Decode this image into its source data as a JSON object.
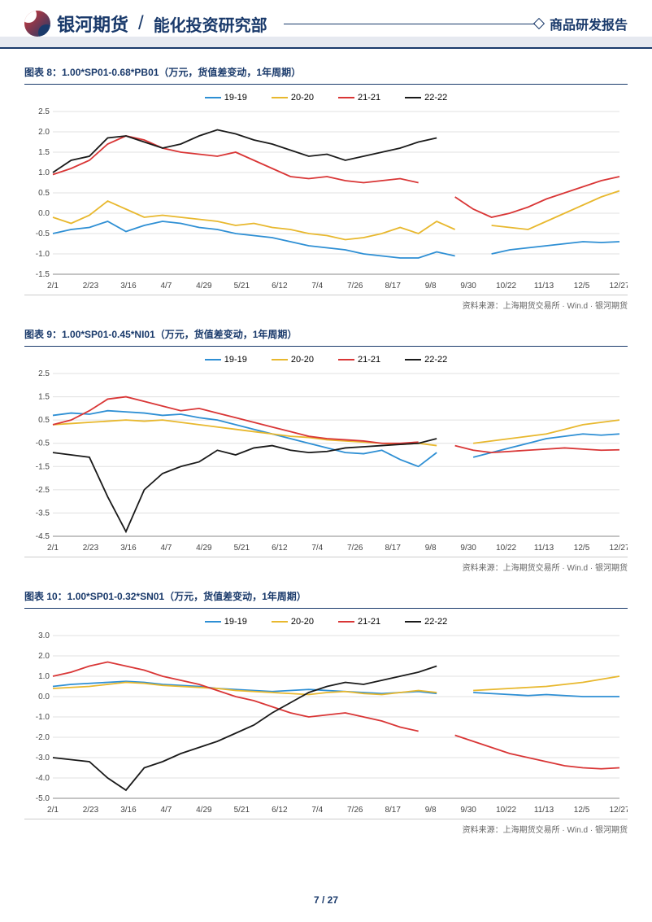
{
  "header": {
    "brand": "银河期货",
    "dept": "能化投资研究部",
    "report_type": "商品研发报告"
  },
  "footer": {
    "page": "7",
    "total": "27"
  },
  "colors": {
    "s1": "#2e8fd4",
    "s2": "#e8b82e",
    "s3": "#d93636",
    "s4": "#1a1a1a",
    "title": "#1a3a6b",
    "grid": "#e0e0e0"
  },
  "legend_labels": [
    "19-19",
    "20-20",
    "21-21",
    "22-22"
  ],
  "source_text": "资料来源：上海期货交易所 · Win.d · 银河期货",
  "x_labels": [
    "2/1",
    "2/23",
    "3/16",
    "4/7",
    "4/29",
    "5/21",
    "6/12",
    "7/4",
    "7/26",
    "8/17",
    "9/8",
    "9/30",
    "10/22",
    "11/13",
    "12/5",
    "12/27"
  ],
  "charts": [
    {
      "title": "图表 8：1.00*SP01-0.68*PB01（万元，货值差变动，1年周期）",
      "ymin": -1.5,
      "ymax": 2.5,
      "ystep": 0.5,
      "series": [
        {
          "color": "#2e8fd4",
          "data": [
            -0.5,
            -0.4,
            -0.35,
            -0.2,
            -0.45,
            -0.3,
            -0.2,
            -0.25,
            -0.35,
            -0.4,
            -0.5,
            -0.55,
            -0.6,
            -0.7,
            -0.8,
            -0.85,
            -0.9,
            -1.0,
            -1.05,
            -1.1,
            -1.1,
            -0.95,
            -1.05,
            null,
            -1.0,
            -0.9,
            -0.85,
            -0.8,
            -0.75,
            -0.7,
            -0.72,
            -0.7
          ]
        },
        {
          "color": "#e8b82e",
          "data": [
            -0.1,
            -0.25,
            -0.05,
            0.3,
            0.1,
            -0.1,
            -0.05,
            -0.1,
            -0.15,
            -0.2,
            -0.3,
            -0.25,
            -0.35,
            -0.4,
            -0.5,
            -0.55,
            -0.65,
            -0.6,
            -0.5,
            -0.35,
            -0.5,
            -0.2,
            -0.4,
            null,
            -0.3,
            -0.35,
            -0.4,
            -0.2,
            0.0,
            0.2,
            0.4,
            0.55
          ]
        },
        {
          "color": "#d93636",
          "data": [
            0.95,
            1.1,
            1.3,
            1.7,
            1.9,
            1.8,
            1.6,
            1.5,
            1.45,
            1.4,
            1.5,
            1.3,
            1.1,
            0.9,
            0.85,
            0.9,
            0.8,
            0.75,
            0.8,
            0.85,
            0.75,
            null,
            0.4,
            0.1,
            -0.1,
            0.0,
            0.15,
            0.35,
            0.5,
            0.65,
            0.8,
            0.9
          ]
        },
        {
          "color": "#1a1a1a",
          "data": [
            1.0,
            1.3,
            1.4,
            1.85,
            1.9,
            1.75,
            1.6,
            1.7,
            1.9,
            2.05,
            1.95,
            1.8,
            1.7,
            1.55,
            1.4,
            1.45,
            1.3,
            1.4,
            1.5,
            1.6,
            1.75,
            1.85,
            null,
            null,
            null,
            null,
            null,
            null,
            null,
            null,
            null,
            null
          ]
        }
      ]
    },
    {
      "title": "图表 9：1.00*SP01-0.45*NI01（万元，货值差变动，1年周期）",
      "ymin": -4.5,
      "ymax": 2.5,
      "ystep": 1.0,
      "series": [
        {
          "color": "#2e8fd4",
          "data": [
            0.7,
            0.8,
            0.75,
            0.9,
            0.85,
            0.8,
            0.7,
            0.75,
            0.6,
            0.5,
            0.3,
            0.1,
            -0.1,
            -0.3,
            -0.5,
            -0.7,
            -0.9,
            -0.95,
            -0.8,
            -1.2,
            -1.5,
            -0.9,
            null,
            -1.1,
            -0.9,
            -0.7,
            -0.5,
            -0.3,
            -0.2,
            -0.1,
            -0.15,
            -0.1
          ]
        },
        {
          "color": "#e8b82e",
          "data": [
            0.3,
            0.35,
            0.4,
            0.45,
            0.5,
            0.45,
            0.5,
            0.4,
            0.3,
            0.2,
            0.1,
            0.0,
            -0.1,
            -0.2,
            -0.25,
            -0.35,
            -0.4,
            -0.45,
            -0.5,
            -0.55,
            -0.5,
            -0.6,
            null,
            -0.5,
            -0.4,
            -0.3,
            -0.2,
            -0.1,
            0.1,
            0.3,
            0.4,
            0.5
          ]
        },
        {
          "color": "#d93636",
          "data": [
            0.3,
            0.5,
            0.9,
            1.4,
            1.5,
            1.3,
            1.1,
            0.9,
            1.0,
            0.8,
            0.6,
            0.4,
            0.2,
            0.0,
            -0.2,
            -0.3,
            -0.35,
            -0.4,
            -0.5,
            -0.5,
            -0.45,
            null,
            -0.6,
            -0.8,
            -0.9,
            -0.85,
            -0.8,
            -0.75,
            -0.7,
            -0.75,
            -0.8,
            -0.78
          ]
        },
        {
          "color": "#1a1a1a",
          "data": [
            -0.9,
            -1.0,
            -1.1,
            -2.8,
            -4.3,
            -2.5,
            -1.8,
            -1.5,
            -1.3,
            -0.8,
            -1.0,
            -0.7,
            -0.6,
            -0.8,
            -0.9,
            -0.85,
            -0.7,
            -0.65,
            -0.6,
            -0.55,
            -0.5,
            -0.3,
            null,
            null,
            null,
            null,
            null,
            null,
            null,
            null,
            null,
            null
          ]
        }
      ]
    },
    {
      "title": "图表 10：1.00*SP01-0.32*SN01（万元，货值差变动，1年周期）",
      "ymin": -5.0,
      "ymax": 3.0,
      "ystep": 1.0,
      "series": [
        {
          "color": "#2e8fd4",
          "data": [
            0.5,
            0.6,
            0.65,
            0.7,
            0.75,
            0.7,
            0.6,
            0.55,
            0.5,
            0.4,
            0.35,
            0.3,
            0.25,
            0.3,
            0.35,
            0.3,
            0.25,
            0.2,
            0.15,
            0.2,
            0.25,
            0.15,
            null,
            0.2,
            0.15,
            0.1,
            0.05,
            0.1,
            0.05,
            0.0,
            0.0,
            0.0
          ]
        },
        {
          "color": "#e8b82e",
          "data": [
            0.4,
            0.45,
            0.5,
            0.6,
            0.7,
            0.65,
            0.55,
            0.5,
            0.45,
            0.4,
            0.3,
            0.25,
            0.2,
            0.15,
            0.1,
            0.2,
            0.25,
            0.15,
            0.1,
            0.2,
            0.3,
            0.2,
            null,
            0.3,
            0.35,
            0.4,
            0.45,
            0.5,
            0.6,
            0.7,
            0.85,
            1.0
          ]
        },
        {
          "color": "#d93636",
          "data": [
            1.0,
            1.2,
            1.5,
            1.7,
            1.5,
            1.3,
            1.0,
            0.8,
            0.6,
            0.3,
            0.0,
            -0.2,
            -0.5,
            -0.8,
            -1.0,
            -0.9,
            -0.8,
            -1.0,
            -1.2,
            -1.5,
            -1.7,
            null,
            -1.9,
            -2.2,
            -2.5,
            -2.8,
            -3.0,
            -3.2,
            -3.4,
            -3.5,
            -3.55,
            -3.5
          ]
        },
        {
          "color": "#1a1a1a",
          "data": [
            -3.0,
            -3.1,
            -3.2,
            -4.0,
            -4.6,
            -3.5,
            -3.2,
            -2.8,
            -2.5,
            -2.2,
            -1.8,
            -1.4,
            -0.8,
            -0.3,
            0.2,
            0.5,
            0.7,
            0.6,
            0.8,
            1.0,
            1.2,
            1.5,
            null,
            null,
            null,
            null,
            null,
            null,
            null,
            null,
            null,
            null
          ]
        }
      ]
    }
  ]
}
